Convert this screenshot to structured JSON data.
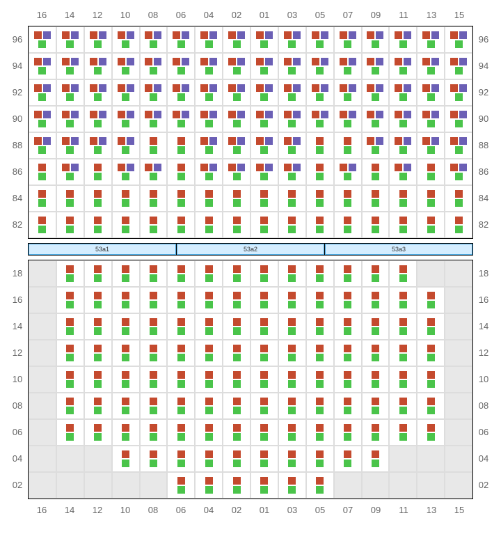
{
  "colors": {
    "brown": "#c44a2e",
    "purple": "#6b5fb5",
    "green": "#4ac44a",
    "empty_bg": "#e8e8e8",
    "cell_bg": "#ffffff",
    "border": "#000000",
    "grid_line": "#dddddd",
    "label": "#666666",
    "sep_bg": "#d4edff",
    "sep_border": "#4aa8e0"
  },
  "columns": [
    "16",
    "14",
    "12",
    "10",
    "08",
    "06",
    "04",
    "02",
    "01",
    "03",
    "05",
    "07",
    "09",
    "11",
    "13",
    "15"
  ],
  "top_rows": [
    "96",
    "94",
    "92",
    "90",
    "88",
    "86",
    "84",
    "82"
  ],
  "bottom_rows": [
    "18",
    "16",
    "14",
    "12",
    "10",
    "08",
    "06",
    "04",
    "02"
  ],
  "separator_labels": [
    "53a1",
    "53a2",
    "53a3"
  ],
  "top_grid": {
    "type": "seat-grid",
    "rows": 8,
    "cols": 16,
    "cells_with_purple": [
      [
        0,
        0
      ],
      [
        0,
        1
      ],
      [
        0,
        2
      ],
      [
        0,
        3
      ],
      [
        0,
        4
      ],
      [
        0,
        5
      ],
      [
        0,
        6
      ],
      [
        0,
        7
      ],
      [
        0,
        8
      ],
      [
        0,
        9
      ],
      [
        0,
        10
      ],
      [
        0,
        11
      ],
      [
        0,
        12
      ],
      [
        0,
        13
      ],
      [
        0,
        14
      ],
      [
        0,
        15
      ],
      [
        1,
        0
      ],
      [
        1,
        1
      ],
      [
        1,
        2
      ],
      [
        1,
        3
      ],
      [
        1,
        4
      ],
      [
        1,
        5
      ],
      [
        1,
        6
      ],
      [
        1,
        7
      ],
      [
        1,
        8
      ],
      [
        1,
        9
      ],
      [
        1,
        10
      ],
      [
        1,
        11
      ],
      [
        1,
        12
      ],
      [
        1,
        13
      ],
      [
        1,
        14
      ],
      [
        1,
        15
      ],
      [
        2,
        0
      ],
      [
        2,
        1
      ],
      [
        2,
        2
      ],
      [
        2,
        3
      ],
      [
        2,
        4
      ],
      [
        2,
        5
      ],
      [
        2,
        6
      ],
      [
        2,
        7
      ],
      [
        2,
        8
      ],
      [
        2,
        9
      ],
      [
        2,
        10
      ],
      [
        2,
        11
      ],
      [
        2,
        12
      ],
      [
        2,
        13
      ],
      [
        2,
        14
      ],
      [
        2,
        15
      ],
      [
        3,
        0
      ],
      [
        3,
        1
      ],
      [
        3,
        2
      ],
      [
        3,
        3
      ],
      [
        3,
        4
      ],
      [
        3,
        5
      ],
      [
        3,
        6
      ],
      [
        3,
        7
      ],
      [
        3,
        8
      ],
      [
        3,
        9
      ],
      [
        3,
        10
      ],
      [
        3,
        11
      ],
      [
        3,
        12
      ],
      [
        3,
        13
      ],
      [
        3,
        14
      ],
      [
        3,
        15
      ],
      [
        4,
        0
      ],
      [
        4,
        1
      ],
      [
        4,
        2
      ],
      [
        4,
        3
      ],
      [
        4,
        6
      ],
      [
        4,
        7
      ],
      [
        4,
        8
      ],
      [
        4,
        9
      ],
      [
        4,
        12
      ],
      [
        4,
        13
      ],
      [
        4,
        14
      ],
      [
        4,
        15
      ],
      [
        5,
        1
      ],
      [
        5,
        3
      ],
      [
        5,
        4
      ],
      [
        5,
        6
      ],
      [
        5,
        7
      ],
      [
        5,
        8
      ],
      [
        5,
        9
      ],
      [
        5,
        11
      ],
      [
        5,
        13
      ],
      [
        5,
        15
      ]
    ]
  },
  "bottom_grid": {
    "type": "seat-grid",
    "rows": 9,
    "cols": 16,
    "empty_cells": [
      [
        0,
        0
      ],
      [
        0,
        14
      ],
      [
        0,
        15
      ],
      [
        1,
        0
      ],
      [
        1,
        15
      ],
      [
        2,
        0
      ],
      [
        2,
        15
      ],
      [
        3,
        0
      ],
      [
        3,
        15
      ],
      [
        4,
        0
      ],
      [
        4,
        15
      ],
      [
        5,
        0
      ],
      [
        5,
        15
      ],
      [
        6,
        0
      ],
      [
        6,
        15
      ],
      [
        7,
        0
      ],
      [
        7,
        1
      ],
      [
        7,
        2
      ],
      [
        7,
        13
      ],
      [
        7,
        14
      ],
      [
        7,
        15
      ],
      [
        8,
        0
      ],
      [
        8,
        1
      ],
      [
        8,
        2
      ],
      [
        8,
        3
      ],
      [
        8,
        4
      ],
      [
        8,
        11
      ],
      [
        8,
        12
      ],
      [
        8,
        13
      ],
      [
        8,
        14
      ],
      [
        8,
        15
      ]
    ]
  }
}
